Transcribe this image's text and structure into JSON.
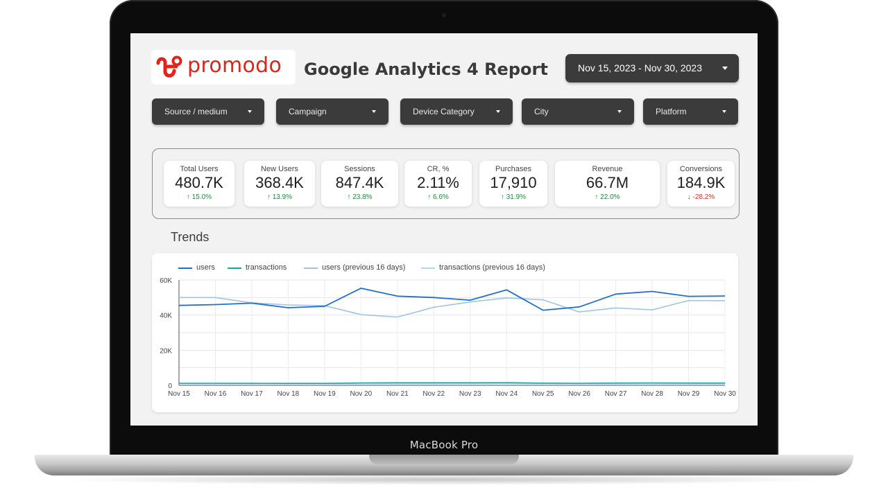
{
  "device": {
    "label": "MacBook Pro"
  },
  "brand": {
    "name": "promodo",
    "color": "#e2231a"
  },
  "header": {
    "title": "Google Analytics 4 Report"
  },
  "date_range": {
    "label": "Nov 15, 2023 - Nov 30, 2023"
  },
  "filters": [
    {
      "label": "Source / medium"
    },
    {
      "label": "Campaign"
    },
    {
      "label": "Device Category"
    },
    {
      "label": "City"
    },
    {
      "label": "Platform"
    }
  ],
  "kpis": [
    {
      "label": "Total Users",
      "value": "480.7K",
      "delta": "15.0%",
      "trend": "up"
    },
    {
      "label": "New Users",
      "value": "368.4K",
      "delta": "13.9%",
      "trend": "up"
    },
    {
      "label": "Sessions",
      "value": "847.4K",
      "delta": "23.8%",
      "trend": "up"
    },
    {
      "label": "CR, %",
      "value": "2.11%",
      "delta": "6.6%",
      "trend": "up"
    },
    {
      "label": "Purchases",
      "value": "17,910",
      "delta": "31.9%",
      "trend": "up"
    },
    {
      "label": "Revenue",
      "value": "66.7M",
      "delta": "22.0%",
      "trend": "up"
    },
    {
      "label": "Conversions",
      "value": "184.9K",
      "delta": "-28.2%",
      "trend": "down"
    }
  ],
  "trends": {
    "title": "Trends"
  },
  "chart_data": {
    "type": "line",
    "title": "",
    "xlabel": "",
    "ylabel": "",
    "categories": [
      "Nov 15",
      "Nov 16",
      "Nov 17",
      "Nov 18",
      "Nov 19",
      "Nov 20",
      "Nov 21",
      "Nov 22",
      "Nov 23",
      "Nov 24",
      "Nov 25",
      "Nov 26",
      "Nov 27",
      "Nov 28",
      "Nov 29",
      "Nov 30"
    ],
    "y_ticks": [
      "0",
      "20K",
      "40K",
      "60K"
    ],
    "ylim": [
      0,
      60000
    ],
    "grid": true,
    "legend_position": "top-left",
    "series": [
      {
        "name": "users",
        "color": "#1f6fd0",
        "values": [
          45500,
          46000,
          46800,
          44200,
          45000,
          55300,
          50800,
          50000,
          48500,
          54400,
          42800,
          44700,
          52000,
          53500,
          50700,
          50900
        ]
      },
      {
        "name": "transactions",
        "color": "#1aa5a5",
        "values": [
          1200,
          1200,
          1150,
          1100,
          1100,
          1400,
          1450,
          1450,
          1450,
          1500,
          1250,
          1200,
          1300,
          1400,
          1300,
          1300
        ]
      },
      {
        "name": "users (previous 16 days)",
        "color": "#9dc4e8",
        "values": [
          50000,
          50000,
          47000,
          45800,
          45400,
          40300,
          38900,
          44500,
          47500,
          49800,
          48700,
          41800,
          44100,
          43000,
          48300,
          48200
        ]
      },
      {
        "name": "transactions (previous 16 days)",
        "color": "#b7d6f0",
        "values": [
          900,
          900,
          900,
          850,
          850,
          850,
          850,
          850,
          900,
          950,
          900,
          850,
          850,
          850,
          850,
          850
        ]
      }
    ]
  }
}
